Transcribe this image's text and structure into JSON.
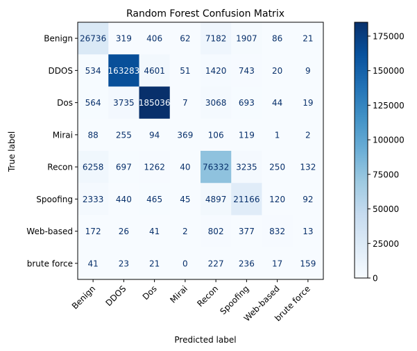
{
  "chart_data": {
    "type": "heatmap",
    "title": "Random Forest Confusion Matrix",
    "xlabel": "Predicted label",
    "ylabel": "True label",
    "x_categories": [
      "Benign",
      "DDOS",
      "Dos",
      "Mirai",
      "Recon",
      "Spoofing",
      "Web-based",
      "brute force"
    ],
    "y_categories": [
      "Benign",
      "DDOS",
      "Dos",
      "Mirai",
      "Recon",
      "Spoofing",
      "Web-based",
      "brute force"
    ],
    "values": [
      [
        26736,
        319,
        406,
        62,
        7182,
        1907,
        86,
        21
      ],
      [
        534,
        163283,
        4601,
        51,
        1420,
        743,
        20,
        9
      ],
      [
        564,
        3735,
        185036,
        7,
        3068,
        693,
        44,
        19
      ],
      [
        88,
        255,
        94,
        369,
        106,
        119,
        1,
        2
      ],
      [
        6258,
        697,
        1262,
        40,
        76332,
        3235,
        250,
        132
      ],
      [
        2333,
        440,
        465,
        45,
        4897,
        21166,
        120,
        92
      ],
      [
        172,
        26,
        41,
        2,
        802,
        377,
        832,
        13
      ],
      [
        41,
        23,
        21,
        0,
        227,
        236,
        17,
        159
      ]
    ],
    "colormap": "Blues",
    "vmin": 0,
    "vmax": 185036,
    "colorbar_ticks": [
      0,
      25000,
      50000,
      75000,
      100000,
      125000,
      150000,
      175000
    ],
    "colorbar_tick_labels": [
      "0",
      "25000",
      "50000",
      "75000",
      "100000",
      "125000",
      "150000",
      "175000"
    ],
    "grid": false,
    "legend": "colorbar-right"
  }
}
